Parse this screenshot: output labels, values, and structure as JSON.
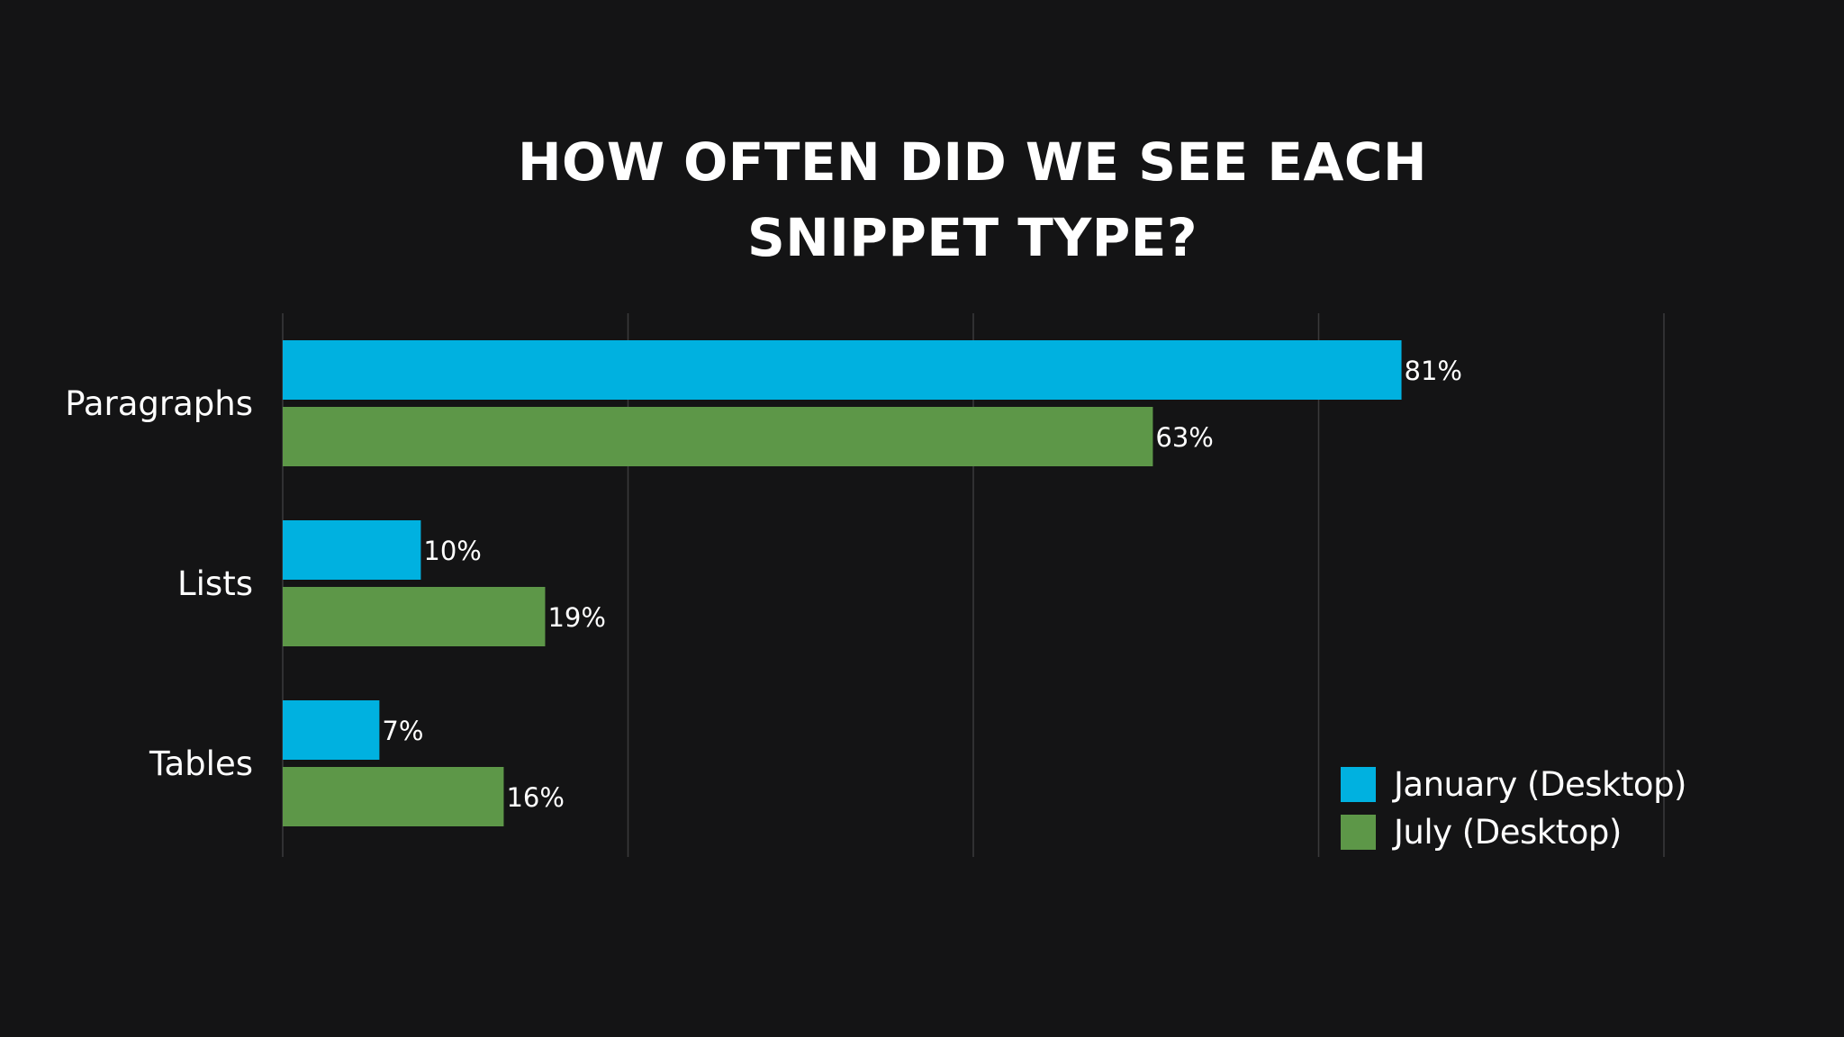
{
  "chart_data": {
    "type": "bar",
    "orientation": "horizontal",
    "title": "HOW OFTEN DID WE SEE EACH SNIPPET TYPE?",
    "title_lines": [
      "HOW OFTEN DID WE SEE EACH",
      "SNIPPET TYPE?"
    ],
    "categories": [
      "Paragraphs",
      "Lists",
      "Tables"
    ],
    "series": [
      {
        "name": "January (Desktop)",
        "color": "#00b1e0",
        "values": [
          81,
          10,
          7
        ],
        "labels": [
          "81%",
          "10%",
          "7%"
        ]
      },
      {
        "name": "July (Desktop)",
        "color": "#5d9748",
        "values": [
          63,
          19,
          16
        ],
        "labels": [
          "63%",
          "19%",
          "16%"
        ]
      }
    ],
    "xlim": [
      0,
      100
    ],
    "grid": true,
    "gridline_values": [
      0,
      25,
      50,
      75,
      100
    ],
    "show_tick_labels": false,
    "legend_position": "bottom-right",
    "xlabel": "",
    "ylabel": ""
  },
  "colors": {
    "background": "#141415",
    "gridline": "#3a3a3c",
    "text": "#ffffff"
  }
}
